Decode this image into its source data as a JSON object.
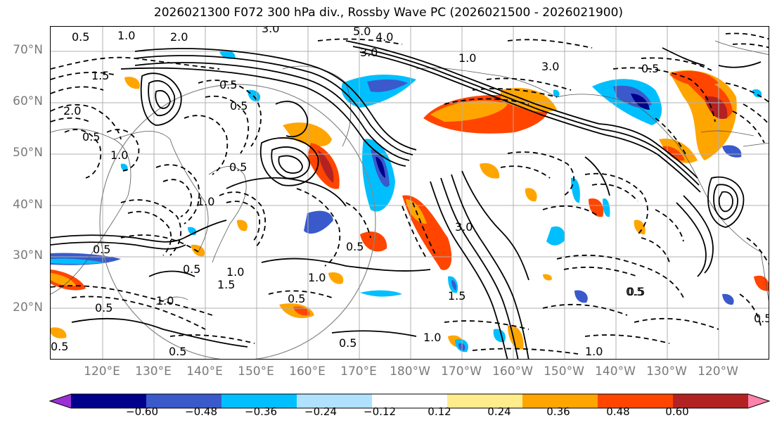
{
  "title": "2026021300 F072 300 hPa div., Rossby Wave PC (2026021500 - 2026021900)",
  "lat_labels": [
    "70°N",
    "60°N",
    "50°N",
    "40°N",
    "30°N",
    "20°N"
  ],
  "lon_labels": [
    "120°E",
    "130°E",
    "140°E",
    "150°E",
    "160°E",
    "170°E",
    "180°W",
    "170°W",
    "160°W",
    "150°W",
    "140°W",
    "130°W",
    "120°W"
  ],
  "colorbar": {
    "ticks": [
      "−0.60",
      "−0.48",
      "−0.36",
      "−0.24",
      "−0.12",
      "0.12",
      "0.24",
      "0.36",
      "0.48",
      "0.60"
    ],
    "colors": [
      "#9b30d6",
      "#00008b",
      "#3a5acc",
      "#00bfff",
      "#b0e2ff",
      "#ffffff",
      "#ffec8b",
      "#ffa500",
      "#ff4500",
      "#b22222",
      "#ff82ab"
    ]
  },
  "contour_labels": [
    "0.5",
    "1.0",
    "2.0",
    "3.0",
    "5.0",
    "4.0",
    "3.0",
    "1.0",
    "3.0",
    "0.5",
    "0.5",
    "1.5",
    "2.0",
    "0.5",
    "1.0",
    "0.5",
    "1.0",
    "0.5",
    "0.5",
    "1.0",
    "1.5",
    "0.5",
    "1.0",
    "3.0",
    "0.5",
    "1.0",
    "1.5",
    "0.5",
    "0.5",
    "1.0",
    "0.5",
    "0.5",
    "0.5",
    "0.5",
    "1.0",
    "0.5",
    "0.5"
  ]
}
